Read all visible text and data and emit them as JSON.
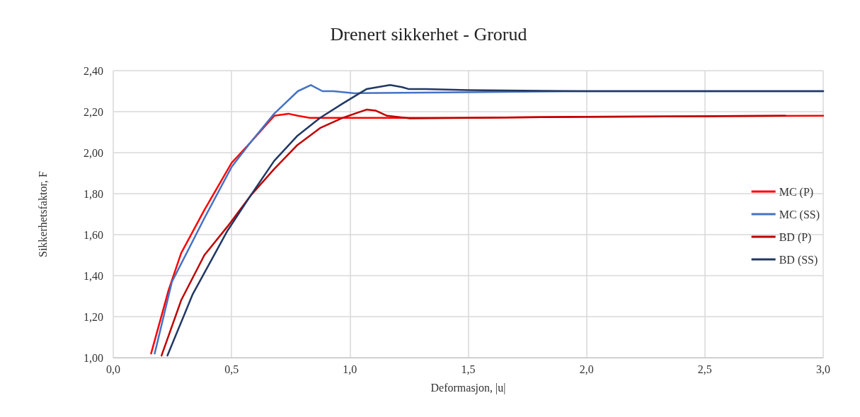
{
  "chart_data": {
    "type": "line",
    "title": "Drenert sikkerhet - Grorud",
    "xlabel": "Deformasjon, |u|",
    "ylabel": "Sikkerhetsfaktor, F",
    "xlim": [
      0,
      3
    ],
    "ylim": [
      1,
      2.4
    ],
    "xticks": [
      {
        "value": 0,
        "label": "0,0"
      },
      {
        "value": 0.5,
        "label": "0,5"
      },
      {
        "value": 1,
        "label": "1,0"
      },
      {
        "value": 1.5,
        "label": "1,5"
      },
      {
        "value": 2,
        "label": "2,0"
      },
      {
        "value": 2.5,
        "label": "2,5"
      },
      {
        "value": 3,
        "label": "3,0"
      }
    ],
    "yticks": [
      {
        "value": 1,
        "label": "1,00"
      },
      {
        "value": 1.2,
        "label": "1,20"
      },
      {
        "value": 1.4,
        "label": "1,40"
      },
      {
        "value": 1.6,
        "label": "1,60"
      },
      {
        "value": 1.8,
        "label": "1,80"
      },
      {
        "value": 2,
        "label": "2,00"
      },
      {
        "value": 2.2,
        "label": "2,20"
      },
      {
        "value": 2.4,
        "label": "2,40"
      }
    ],
    "grid": true,
    "legend": "right",
    "marker": "none",
    "line_style": "solid",
    "series": [
      {
        "name": "MC (P)",
        "color": "#ff0000",
        "x": [
          0.16,
          0.234,
          0.287,
          0.385,
          0.5,
          0.58,
          0.68,
          0.74,
          0.78,
          0.83,
          1.0,
          1.5,
          2.0,
          2.5,
          3.0
        ],
        "values": [
          1.02,
          1.33,
          1.51,
          1.72,
          1.95,
          2.05,
          2.18,
          2.19,
          2.18,
          2.17,
          2.17,
          2.17,
          2.175,
          2.178,
          2.18
        ]
      },
      {
        "name": "MC (SS)",
        "color": "#4472c4",
        "x": [
          0.175,
          0.248,
          0.385,
          0.5,
          0.58,
          0.68,
          0.78,
          0.835,
          0.884,
          0.93,
          1.02,
          1.5,
          2.0,
          2.5,
          3.0
        ],
        "values": [
          1.02,
          1.37,
          1.68,
          1.93,
          2.05,
          2.19,
          2.3,
          2.33,
          2.3,
          2.3,
          2.29,
          2.295,
          2.3,
          2.3,
          2.3
        ]
      },
      {
        "name": "BD (P)",
        "color": "#c00000",
        "x": [
          0.204,
          0.287,
          0.385,
          0.483,
          0.58,
          0.68,
          0.776,
          0.874,
          0.97,
          1.07,
          1.11,
          1.157,
          1.255,
          1.5,
          2.0,
          2.5,
          2.84
        ],
        "values": [
          1.01,
          1.28,
          1.5,
          1.64,
          1.79,
          1.92,
          2.035,
          2.12,
          2.17,
          2.21,
          2.205,
          2.18,
          2.167,
          2.17,
          2.175,
          2.178,
          2.18
        ]
      },
      {
        "name": "BD (SS)",
        "color": "#203864",
        "x": [
          0.229,
          0.336,
          0.483,
          0.58,
          0.68,
          0.776,
          0.874,
          0.97,
          1.07,
          1.17,
          1.22,
          1.25,
          1.32,
          1.5,
          2.0,
          2.5,
          3.0
        ],
        "values": [
          1.01,
          1.31,
          1.62,
          1.79,
          1.96,
          2.08,
          2.17,
          2.24,
          2.31,
          2.33,
          2.32,
          2.31,
          2.31,
          2.305,
          2.3,
          2.3,
          2.3
        ]
      }
    ]
  }
}
